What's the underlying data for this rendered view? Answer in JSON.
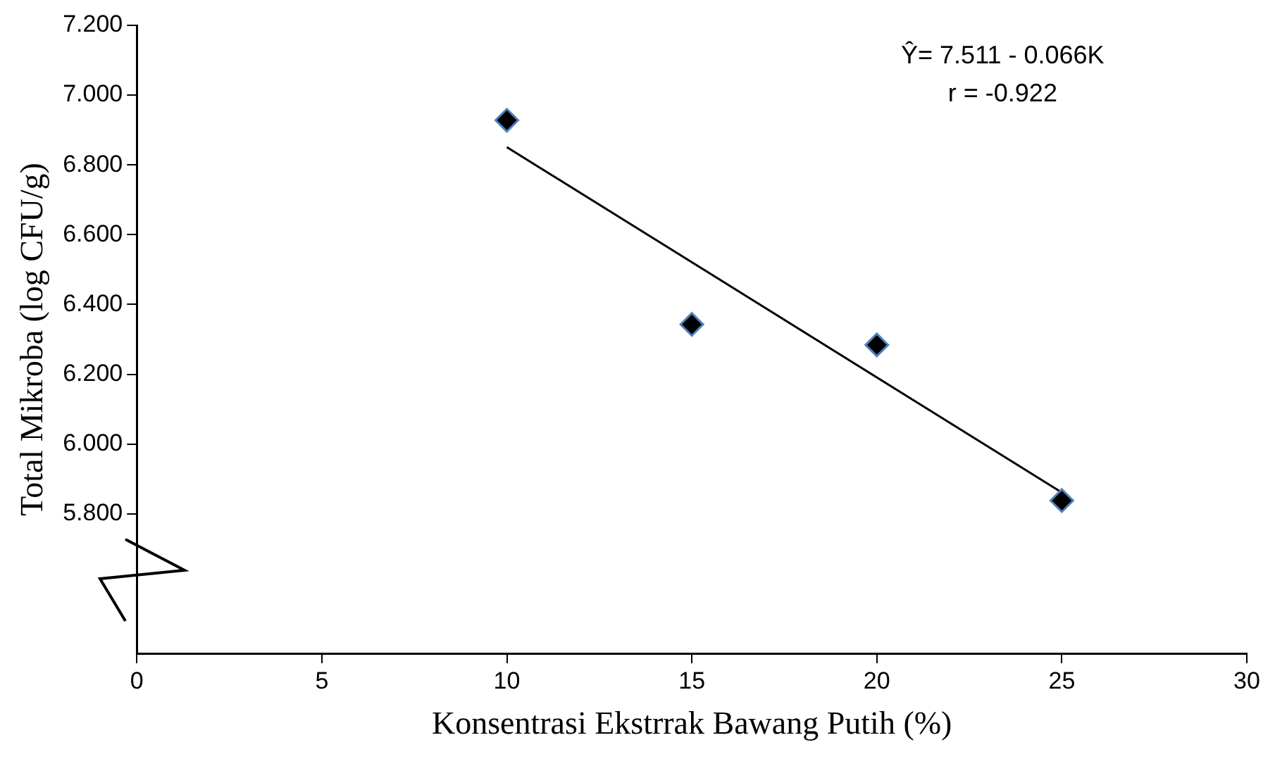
{
  "chart_data": {
    "type": "scatter",
    "xlabel": "Konsentrasi Ekstrrak Bawang Putih (%)",
    "ylabel": "Total Mikroba (log CFU/g)",
    "annotations": [
      "Ŷ= 7.511 - 0.066K",
      "r = -0.922"
    ],
    "x": [
      10,
      15,
      20,
      25
    ],
    "series": [
      {
        "color": "#000000",
        "values": [
          6.928,
          6.343,
          6.284,
          5.838
        ],
        "marker": "diamond"
      },
      {
        "type": "line",
        "color": "#000000",
        "x": [
          10,
          25
        ],
        "values": [
          6.851,
          5.861
        ],
        "marker": "none",
        "line_style": "solid"
      }
    ],
    "xlim": [
      0,
      30
    ],
    "xticks": [
      0,
      5,
      10,
      15,
      20,
      25,
      30
    ],
    "ylim": [
      5.4,
      7.2
    ],
    "yticks": [
      {
        "value": 5.8,
        "label": "5.800"
      },
      {
        "value": 6,
        "label": "6.000"
      },
      {
        "value": 6.2,
        "label": "6.200"
      },
      {
        "value": 6.4,
        "label": "6.400"
      },
      {
        "value": 6.6,
        "label": "6.600"
      },
      {
        "value": 6.8,
        "label": "6.800"
      },
      {
        "value": 7,
        "label": "7.000"
      },
      {
        "value": 7.2,
        "label": "7.200"
      }
    ],
    "grid": false,
    "legend": false
  }
}
